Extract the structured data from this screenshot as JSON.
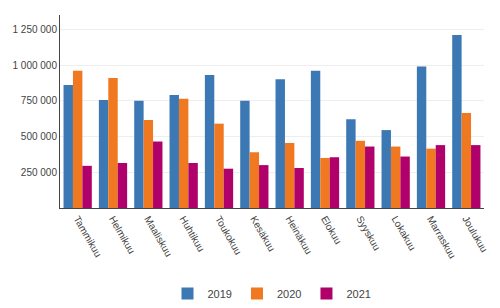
{
  "chart_data": {
    "type": "bar",
    "categories": [
      "Tammikuu",
      "Helmikuu",
      "Maaliskuu",
      "Huhtikuu",
      "Toukokuu",
      "Kesäkuu",
      "Heinäkuu",
      "Elokuu",
      "Syyskuu",
      "Lokakuu",
      "Marraskuu",
      "Joulukuu"
    ],
    "series": [
      {
        "name": "2019",
        "color": "#3c78b4",
        "values": [
          860000,
          755000,
          750000,
          790000,
          930000,
          750000,
          900000,
          960000,
          620000,
          545000,
          990000,
          1210000
        ]
      },
      {
        "name": "2020",
        "color": "#f07820",
        "values": [
          960000,
          910000,
          615000,
          765000,
          590000,
          390000,
          455000,
          350000,
          470000,
          430000,
          415000,
          665000
        ]
      },
      {
        "name": "2021",
        "color": "#b0006a",
        "values": [
          295000,
          315000,
          465000,
          315000,
          275000,
          300000,
          280000,
          355000,
          430000,
          360000,
          440000,
          440000
        ]
      }
    ],
    "ylim": [
      0,
      1350000
    ],
    "yticks": [
      {
        "value": 250000,
        "label": "250 000"
      },
      {
        "value": 500000,
        "label": "500 000"
      },
      {
        "value": 750000,
        "label": "750 000"
      },
      {
        "value": 1000000,
        "label": "1 000 000"
      },
      {
        "value": 1250000,
        "label": "1 250 000"
      }
    ],
    "grid": true,
    "legend": "bottom"
  }
}
